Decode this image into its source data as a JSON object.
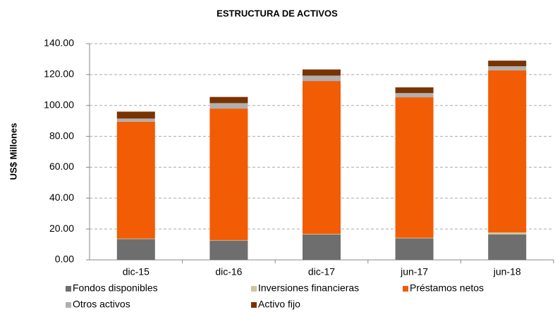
{
  "chart_data": {
    "type": "stacked_bar",
    "title": "ESTRUCTURA DE ACTIVOS",
    "y_label": "US$ Millones",
    "categories": [
      "dic-15",
      "dic-16",
      "dic-17",
      "jun-17",
      "jun-18"
    ],
    "series": [
      {
        "name": "Fondos disponibles",
        "color": "#6e6e6e",
        "values": [
          13.5,
          12.5,
          16.5,
          14,
          16.5
        ]
      },
      {
        "name": "Inversiones financieras",
        "color": "#cfc59b",
        "values": [
          0.3,
          0.3,
          0.3,
          0.3,
          1.3
        ]
      },
      {
        "name": "Préstamos netos",
        "color": "#f25c05",
        "values": [
          75.7,
          85.2,
          99,
          91,
          104.9
        ]
      },
      {
        "name": "Otros activos",
        "color": "#b0b0b0",
        "values": [
          2,
          3.5,
          3.5,
          2.7,
          2.7
        ]
      },
      {
        "name": "Activo fijo",
        "color": "#7a3300",
        "values": [
          4.5,
          4,
          4,
          3.7,
          3.6
        ]
      }
    ],
    "ylim": [
      0,
      140
    ],
    "yticks": [
      {
        "value": 0,
        "label": "0.00"
      },
      {
        "value": 20,
        "label": "20.00"
      },
      {
        "value": 40,
        "label": "40.00"
      },
      {
        "value": 60,
        "label": "60.00"
      },
      {
        "value": 80,
        "label": "80.00"
      },
      {
        "value": 100,
        "label": "100.00"
      },
      {
        "value": 120,
        "label": "120.00"
      },
      {
        "value": 140,
        "label": "140.00"
      }
    ],
    "grid": true,
    "legend": "bottom"
  }
}
